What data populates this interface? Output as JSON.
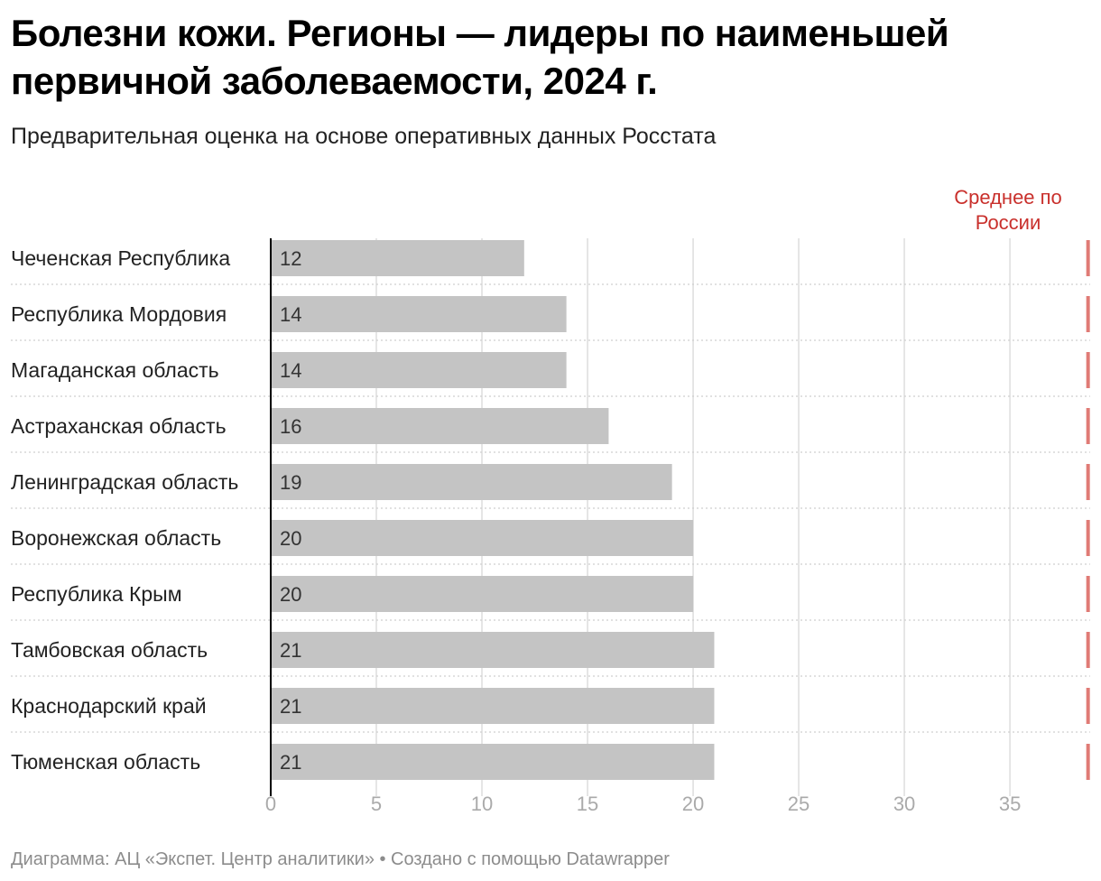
{
  "header": {
    "title": "Болезни кожи. Регионы — лидеры по наименьшей первичной заболеваемости, 2024 г.",
    "subtitle": "Предварительная оценка на основе оперативных данных Росстата"
  },
  "footer": {
    "source": "Диаграмма: АЦ «Экспет. Центр аналитики» • Создано с помощью Datawrapper"
  },
  "colors": {
    "bar": "#c4c4c4",
    "reference": "#e07b76",
    "reference_text": "#c9302c",
    "grid": "#dddddd",
    "axis": "#000000"
  },
  "chart_data": {
    "type": "bar",
    "orientation": "horizontal",
    "categories": [
      "Чеченская Республика",
      "Республика Мордовия",
      "Магаданская область",
      "Астраханская область",
      "Ленинградская область",
      "Воронежская область",
      "Республика Крым",
      "Тамбовская область",
      "Краснодарский край",
      "Тюменская область"
    ],
    "values": [
      12,
      14,
      14,
      16,
      19,
      20,
      20,
      21,
      21,
      21
    ],
    "value_labels": [
      "12",
      "14",
      "14",
      "16",
      "19",
      "20",
      "20",
      "21",
      "21",
      "21"
    ],
    "xlim": [
      0,
      38.8
    ],
    "xticks": [
      0,
      5,
      10,
      15,
      20,
      25,
      30,
      35
    ],
    "xtick_labels": [
      "0",
      "5",
      "10",
      "15",
      "20",
      "25",
      "30",
      "35"
    ],
    "reference_line": {
      "value": 38.7,
      "label_lines": [
        "Среднее по",
        "России"
      ]
    },
    "grid": true,
    "legend": "none"
  }
}
